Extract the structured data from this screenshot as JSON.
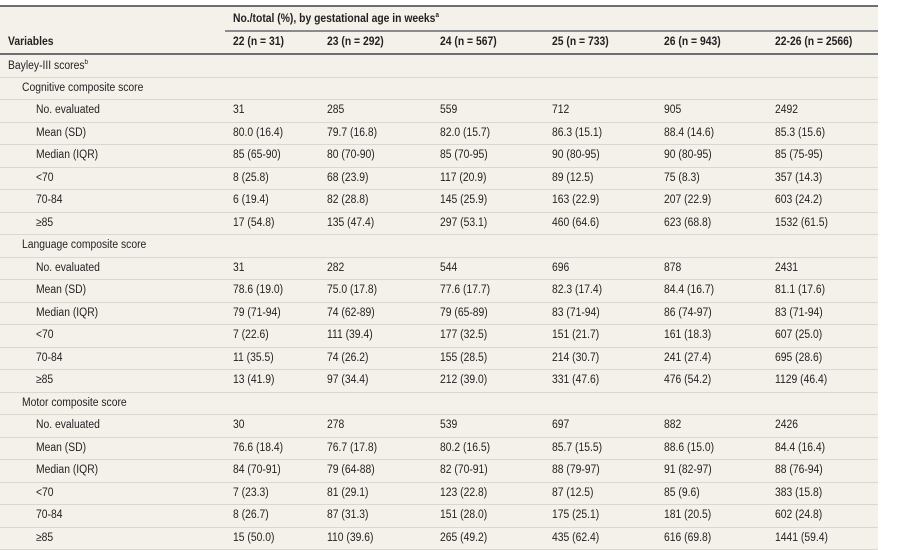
{
  "header": {
    "group": "No./total (%), by gestational age in weeks",
    "group_sup": "a",
    "variables": "Variables",
    "columns": [
      "22 (n = 31)",
      "23 (n = 292)",
      "24 (n = 567)",
      "25 (n = 733)",
      "26 (n = 943)",
      "22-26 (n = 2566)"
    ]
  },
  "section": {
    "label": "Bayley-III scores",
    "sup": "b"
  },
  "groups": [
    {
      "label": "Cognitive composite score",
      "rows": [
        [
          "No. evaluated",
          "31",
          "285",
          "559",
          "712",
          "905",
          "2492"
        ],
        [
          "Mean (SD)",
          "80.0 (16.4)",
          "79.7 (16.8)",
          "82.0 (15.7)",
          "86.3 (15.1)",
          "88.4 (14.6)",
          "85.3 (15.6)"
        ],
        [
          "Median (IQR)",
          "85 (65-90)",
          "80 (70-90)",
          "85 (70-95)",
          "90 (80-95)",
          "90 (80-95)",
          "85 (75-95)"
        ],
        [
          "<70",
          "8 (25.8)",
          "68 (23.9)",
          "117 (20.9)",
          "89 (12.5)",
          "75 (8.3)",
          "357 (14.3)"
        ],
        [
          "70-84",
          "6 (19.4)",
          "82 (28.8)",
          "145 (25.9)",
          "163 (22.9)",
          "207 (22.9)",
          "603 (24.2)"
        ],
        [
          "≥85",
          "17 (54.8)",
          "135 (47.4)",
          "297 (53.1)",
          "460 (64.6)",
          "623 (68.8)",
          "1532 (61.5)"
        ]
      ]
    },
    {
      "label": "Language composite score",
      "rows": [
        [
          "No. evaluated",
          "31",
          "282",
          "544",
          "696",
          "878",
          "2431"
        ],
        [
          "Mean (SD)",
          "78.6 (19.0)",
          "75.0 (17.8)",
          "77.6 (17.7)",
          "82.3 (17.4)",
          "84.4 (16.7)",
          "81.1 (17.6)"
        ],
        [
          "Median (IQR)",
          "79 (71-94)",
          "74 (62-89)",
          "79 (65-89)",
          "83 (71-94)",
          "86 (74-97)",
          "83 (71-94)"
        ],
        [
          "<70",
          "7 (22.6)",
          "111 (39.4)",
          "177 (32.5)",
          "151 (21.7)",
          "161 (18.3)",
          "607 (25.0)"
        ],
        [
          "70-84",
          "11 (35.5)",
          "74 (26.2)",
          "155 (28.5)",
          "214 (30.7)",
          "241 (27.4)",
          "695 (28.6)"
        ],
        [
          "≥85",
          "13 (41.9)",
          "97 (34.4)",
          "212 (39.0)",
          "331 (47.6)",
          "476 (54.2)",
          "1129 (46.4)"
        ]
      ]
    },
    {
      "label": "Motor composite score",
      "rows": [
        [
          "No. evaluated",
          "30",
          "278",
          "539",
          "697",
          "882",
          "2426"
        ],
        [
          "Mean (SD)",
          "76.6 (18.4)",
          "76.7 (17.8)",
          "80.2 (16.5)",
          "85.7 (15.5)",
          "88.6 (15.0)",
          "84.4 (16.4)"
        ],
        [
          "Median (IQR)",
          "84 (70-91)",
          "79 (64-88)",
          "82 (70-91)",
          "88 (79-97)",
          "91 (82-97)",
          "88 (76-94)"
        ],
        [
          "<70",
          "7 (23.3)",
          "81 (29.1)",
          "123 (22.8)",
          "87 (12.5)",
          "85 (9.6)",
          "383 (15.8)"
        ],
        [
          "70-84",
          "8 (26.7)",
          "87 (31.3)",
          "151 (28.0)",
          "175 (25.1)",
          "181 (20.5)",
          "602 (24.8)"
        ],
        [
          "≥85",
          "15 (50.0)",
          "110 (39.6)",
          "265 (49.2)",
          "435 (62.4)",
          "616 (69.8)",
          "1441 (59.4)"
        ]
      ]
    }
  ]
}
